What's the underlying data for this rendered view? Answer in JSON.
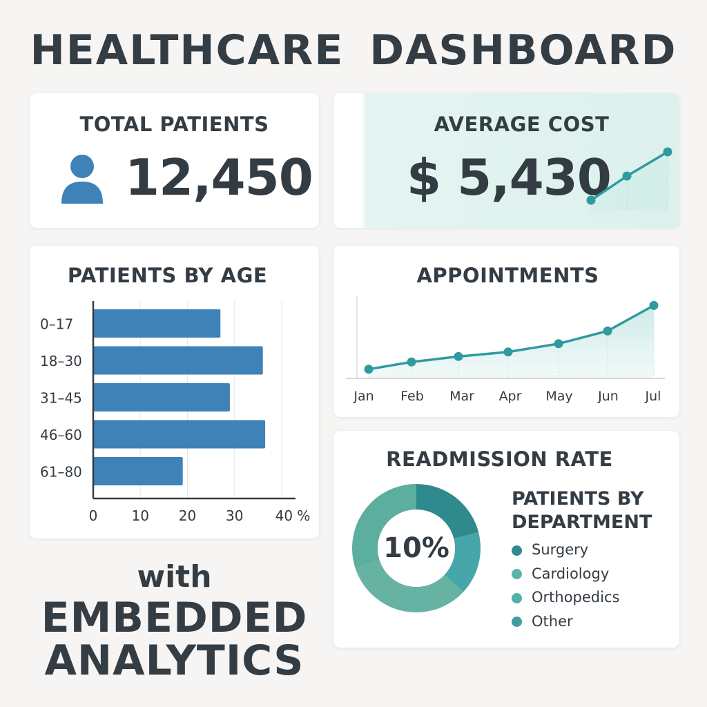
{
  "header": {
    "title": "HEALTHCARE DASHBOARD"
  },
  "total_patients": {
    "title": "TOTAL PATIENTS",
    "value": "12,450",
    "icon": "user-icon"
  },
  "average_cost": {
    "title": "AVERAGE COST",
    "value": "$ 5,430",
    "icon": "trend-up-icon"
  },
  "patients_by_age": {
    "title": "PATIENTS BY AGE"
  },
  "appointments": {
    "title": "APPOINTMENTS"
  },
  "readmission": {
    "title": "READMISSION RATE",
    "center_label": "10%",
    "legend_title_line1": "PATIENTS BY",
    "legend_title_line2": "DEPARTMENT"
  },
  "footer": {
    "line1": "with",
    "line2": "EMBEDDED",
    "line3": "ANALYTICS"
  },
  "colors": {
    "bar": "#3f82b8",
    "line": "#2f9aa0",
    "text": "#343c44",
    "surgery": "#2f8a8d",
    "cardiology": "#4aa9a9",
    "orthopedics": "#4aa9a9",
    "other": "#3e9da4"
  },
  "chart_data": [
    {
      "type": "bar",
      "orientation": "horizontal",
      "title": "PATIENTS BY AGE",
      "categories": [
        "0–17",
        "18–30",
        "31–45",
        "46–60",
        "61–80"
      ],
      "values": [
        27,
        36,
        29,
        36.5,
        19
      ],
      "tick_labels": [
        "0",
        "10",
        "20",
        "30",
        "40 %"
      ],
      "xlim": [
        0,
        40
      ],
      "grid": true
    },
    {
      "type": "line",
      "title": "APPOINTMENTS",
      "categories": [
        "Jan",
        "Feb",
        "Mar",
        "Apr",
        "May",
        "Jun",
        "Jul"
      ],
      "values": [
        10,
        18,
        24,
        29,
        38,
        52,
        80
      ],
      "ylim": [
        0,
        100
      ],
      "grid": true
    },
    {
      "type": "pie",
      "donut": true,
      "title": "READMISSION RATE",
      "categories": [
        "Surgery",
        "Cardiology",
        "Orthopedics",
        "Other"
      ],
      "values": [
        21,
        16,
        33,
        30
      ],
      "legend": "right"
    },
    {
      "type": "line",
      "title": "AVERAGE COST",
      "values": [
        1,
        2,
        3
      ]
    }
  ]
}
